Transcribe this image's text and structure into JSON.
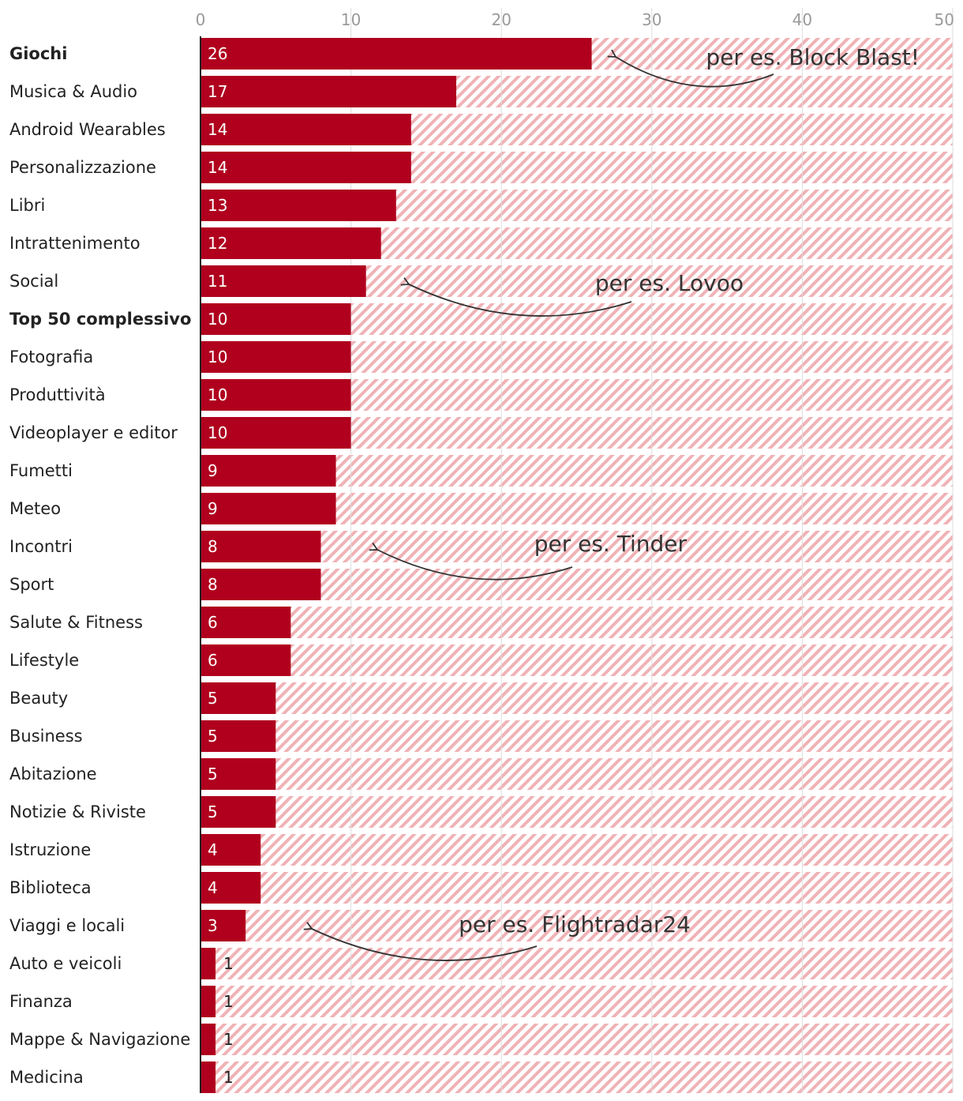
{
  "chart_data": {
    "type": "bar",
    "orientation": "horizontal",
    "title": "",
    "xlabel": "",
    "ylabel": "",
    "xlim": [
      0,
      50
    ],
    "ticks": [
      0,
      10,
      20,
      30,
      40,
      50
    ],
    "grid": true,
    "colors": {
      "bar": "#b0001e",
      "hatch": "#f0b2b6",
      "grid": "#dddddd",
      "axis": "#222222",
      "value_inside": "#ffffff",
      "value_outside": "#222222"
    },
    "categories": [
      {
        "label": "Giochi",
        "value": 26,
        "bold": true
      },
      {
        "label": "Musica & Audio",
        "value": 17,
        "bold": false
      },
      {
        "label": "Android Wearables",
        "value": 14,
        "bold": false
      },
      {
        "label": "Personalizzazione",
        "value": 14,
        "bold": false
      },
      {
        "label": "Libri",
        "value": 13,
        "bold": false
      },
      {
        "label": "Intrattenimento",
        "value": 12,
        "bold": false
      },
      {
        "label": "Social",
        "value": 11,
        "bold": false
      },
      {
        "label": "Top 50 complessivo",
        "value": 10,
        "bold": true
      },
      {
        "label": "Fotografia",
        "value": 10,
        "bold": false
      },
      {
        "label": "Produttività",
        "value": 10,
        "bold": false
      },
      {
        "label": "Videoplayer e editor",
        "value": 10,
        "bold": false
      },
      {
        "label": "Fumetti",
        "value": 9,
        "bold": false
      },
      {
        "label": "Meteo",
        "value": 9,
        "bold": false
      },
      {
        "label": "Incontri",
        "value": 8,
        "bold": false
      },
      {
        "label": "Sport",
        "value": 8,
        "bold": false
      },
      {
        "label": "Salute & Fitness",
        "value": 6,
        "bold": false
      },
      {
        "label": "Lifestyle",
        "value": 6,
        "bold": false
      },
      {
        "label": "Beauty",
        "value": 5,
        "bold": false
      },
      {
        "label": "Business",
        "value": 5,
        "bold": false
      },
      {
        "label": "Abitazione",
        "value": 5,
        "bold": false
      },
      {
        "label": "Notizie & Riviste",
        "value": 5,
        "bold": false
      },
      {
        "label": "Istruzione",
        "value": 4,
        "bold": false
      },
      {
        "label": "Biblioteca",
        "value": 4,
        "bold": false
      },
      {
        "label": "Viaggi e locali",
        "value": 3,
        "bold": false
      },
      {
        "label": "Auto e veicoli",
        "value": 1,
        "bold": false
      },
      {
        "label": "Finanza",
        "value": 1,
        "bold": false
      },
      {
        "label": "Mappe & Navigazione",
        "value": 1,
        "bold": false
      },
      {
        "label": "Medicina",
        "value": 1,
        "bold": false
      }
    ],
    "annotations": [
      {
        "text": "per es. Block Blast!",
        "target": "Giochi"
      },
      {
        "text": "per es. Lovoo",
        "target": "Social"
      },
      {
        "text": "per es. Tinder",
        "target": "Incontri"
      },
      {
        "text": "per es. Flightradar24",
        "target": "Viaggi e locali"
      }
    ]
  }
}
